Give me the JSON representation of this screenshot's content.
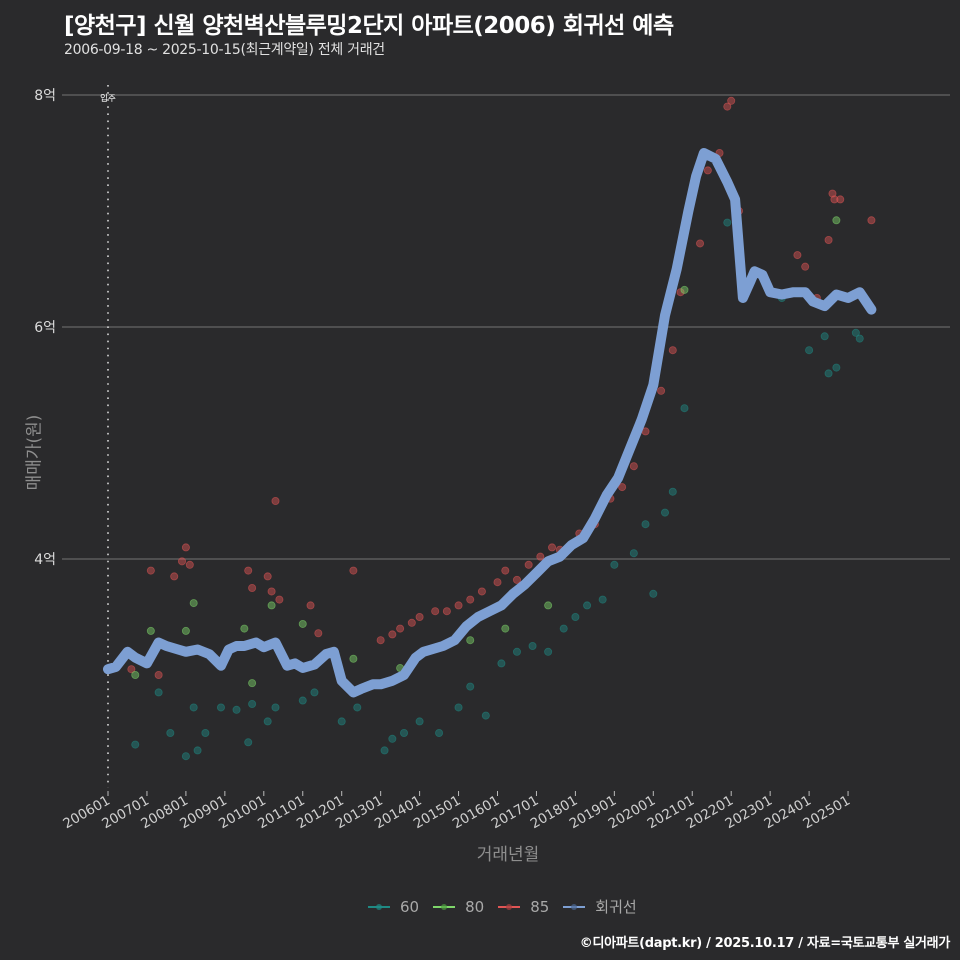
{
  "header": {
    "title": "[양천구] 신월 양천벽산블루밍2단지 아파트(2006) 회귀선 예측",
    "subtitle": "2006-09-18 ~ 2025-10-15(최근계약일) 전체 거래건"
  },
  "axes": {
    "ylabel": "매매가(원)",
    "xlabel": "거래년월",
    "move_in_label": "입주"
  },
  "legend": {
    "items": [
      {
        "label": "60",
        "color": "#1f8a84"
      },
      {
        "label": "80",
        "color": "#7ed66a"
      },
      {
        "label": "85",
        "color": "#e05555"
      },
      {
        "label": "회귀선",
        "color": "#7d9fd3"
      }
    ]
  },
  "caption": "©디아파트(dapt.kr) / 2025.10.17 / 자료=국토교통부 실거래가",
  "chart_data": {
    "type": "scatter",
    "title": "[양천구] 신월 양천벽산블루밍2단지 아파트(2006) 회귀선 예측",
    "subtitle": "2006-09-18 ~ 2025-10-15(최근계약일) 전체 거래건",
    "xlabel": "거래년월",
    "ylabel": "매매가(원)",
    "x_ticks": [
      "200601",
      "200701",
      "200801",
      "200901",
      "201001",
      "201101",
      "201201",
      "201301",
      "201401",
      "201501",
      "201601",
      "201701",
      "201801",
      "201901",
      "202001",
      "202101",
      "202201",
      "202301",
      "202401",
      "202501"
    ],
    "y_ticks": [
      "4억",
      "6억",
      "8억"
    ],
    "ylim_eok": [
      2.0,
      8.1
    ],
    "xlim_year": [
      2005.5,
      2026.0
    ],
    "grid": "horizontal major only",
    "legend_position": "bottom",
    "annotation": {
      "x": 2006.0,
      "label": "입주",
      "style": "vertical dotted line"
    },
    "series": [
      {
        "name": "회귀선",
        "kind": "line",
        "color": "#7d9fd3",
        "x": [
          2006.0,
          2006.2,
          2006.5,
          2006.7,
          2007.0,
          2007.3,
          2007.5,
          2007.8,
          2008.0,
          2008.3,
          2008.6,
          2008.9,
          2009.1,
          2009.3,
          2009.5,
          2009.8,
          2010.0,
          2010.3,
          2010.6,
          2010.8,
          2011.0,
          2011.3,
          2011.6,
          2011.8,
          2012.0,
          2012.3,
          2012.5,
          2012.8,
          2013.0,
          2013.3,
          2013.6,
          2013.9,
          2014.1,
          2014.3,
          2014.6,
          2014.9,
          2015.2,
          2015.5,
          2015.8,
          2016.1,
          2016.4,
          2016.7,
          2017.0,
          2017.3,
          2017.6,
          2017.9,
          2018.2,
          2018.5,
          2018.8,
          2019.1,
          2019.4,
          2019.7,
          2020.0,
          2020.3,
          2020.6,
          2020.9,
          2021.1,
          2021.3,
          2021.6,
          2021.9,
          2022.1,
          2022.3,
          2022.5,
          2022.6,
          2022.8,
          2023.0,
          2023.3,
          2023.6,
          2023.9,
          2024.1,
          2024.4,
          2024.7,
          2025.0,
          2025.3,
          2025.6
        ],
        "values_eok": [
          3.05,
          3.07,
          3.2,
          3.15,
          3.1,
          3.28,
          3.25,
          3.22,
          3.2,
          3.22,
          3.18,
          3.08,
          3.22,
          3.25,
          3.25,
          3.28,
          3.24,
          3.28,
          3.08,
          3.1,
          3.06,
          3.09,
          3.18,
          3.2,
          2.95,
          2.85,
          2.88,
          2.92,
          2.92,
          2.95,
          3.0,
          3.15,
          3.2,
          3.22,
          3.25,
          3.3,
          3.42,
          3.5,
          3.55,
          3.6,
          3.7,
          3.78,
          3.88,
          3.98,
          4.02,
          4.12,
          4.18,
          4.35,
          4.55,
          4.7,
          4.95,
          5.2,
          5.5,
          6.1,
          6.5,
          7.0,
          7.3,
          7.5,
          7.45,
          7.25,
          7.1,
          6.25,
          6.4,
          6.48,
          6.45,
          6.3,
          6.28,
          6.3,
          6.3,
          6.22,
          6.18,
          6.28,
          6.25,
          6.3,
          6.15
        ]
      },
      {
        "name": "85",
        "kind": "scatter",
        "color": "#e05555",
        "points": [
          [
            2006.6,
            3.05
          ],
          [
            2006.7,
            3.15
          ],
          [
            2007.1,
            3.9
          ],
          [
            2007.3,
            3.0
          ],
          [
            2007.7,
            3.85
          ],
          [
            2007.9,
            3.98
          ],
          [
            2008.0,
            4.1
          ],
          [
            2008.1,
            3.95
          ],
          [
            2009.6,
            3.9
          ],
          [
            2009.7,
            3.75
          ],
          [
            2010.1,
            3.85
          ],
          [
            2010.2,
            3.72
          ],
          [
            2010.3,
            4.5
          ],
          [
            2010.4,
            3.65
          ],
          [
            2011.2,
            3.6
          ],
          [
            2011.4,
            3.36
          ],
          [
            2012.3,
            3.9
          ],
          [
            2013.0,
            3.3
          ],
          [
            2013.3,
            3.35
          ],
          [
            2013.5,
            3.4
          ],
          [
            2013.8,
            3.45
          ],
          [
            2014.0,
            3.5
          ],
          [
            2014.4,
            3.55
          ],
          [
            2014.7,
            3.55
          ],
          [
            2015.0,
            3.6
          ],
          [
            2015.3,
            3.65
          ],
          [
            2015.6,
            3.72
          ],
          [
            2016.0,
            3.8
          ],
          [
            2016.2,
            3.9
          ],
          [
            2016.5,
            3.82
          ],
          [
            2016.8,
            3.95
          ],
          [
            2017.1,
            4.02
          ],
          [
            2017.4,
            4.1
          ],
          [
            2017.6,
            4.08
          ],
          [
            2017.9,
            4.12
          ],
          [
            2018.1,
            4.22
          ],
          [
            2018.5,
            4.3
          ],
          [
            2018.9,
            4.52
          ],
          [
            2019.2,
            4.62
          ],
          [
            2019.5,
            4.8
          ],
          [
            2019.8,
            5.1
          ],
          [
            2020.2,
            5.45
          ],
          [
            2020.5,
            5.8
          ],
          [
            2020.7,
            6.3
          ],
          [
            2021.2,
            6.72
          ],
          [
            2021.4,
            7.35
          ],
          [
            2021.7,
            7.5
          ],
          [
            2021.9,
            7.9
          ],
          [
            2022.0,
            7.95
          ],
          [
            2022.2,
            7.0
          ],
          [
            2023.7,
            6.62
          ],
          [
            2023.9,
            6.52
          ],
          [
            2024.2,
            6.25
          ],
          [
            2024.6,
            7.15
          ],
          [
            2024.65,
            7.1
          ],
          [
            2024.8,
            7.1
          ],
          [
            2024.5,
            6.75
          ],
          [
            2025.6,
            6.92
          ]
        ]
      },
      {
        "name": "80",
        "kind": "scatter",
        "color": "#7ed66a",
        "points": [
          [
            2006.7,
            3.0
          ],
          [
            2007.1,
            3.38
          ],
          [
            2008.0,
            3.38
          ],
          [
            2008.2,
            3.62
          ],
          [
            2009.5,
            3.4
          ],
          [
            2009.7,
            2.93
          ],
          [
            2010.2,
            3.6
          ],
          [
            2011.0,
            3.44
          ],
          [
            2012.3,
            3.14
          ],
          [
            2013.5,
            3.06
          ],
          [
            2015.3,
            3.3
          ],
          [
            2016.2,
            3.4
          ],
          [
            2017.3,
            3.6
          ],
          [
            2020.8,
            6.32
          ],
          [
            2024.7,
            6.92
          ]
        ]
      },
      {
        "name": "60",
        "kind": "scatter",
        "color": "#1f8a84",
        "points": [
          [
            2006.7,
            2.4
          ],
          [
            2007.3,
            2.85
          ],
          [
            2007.6,
            2.5
          ],
          [
            2008.0,
            2.3
          ],
          [
            2008.2,
            2.72
          ],
          [
            2008.3,
            2.35
          ],
          [
            2008.5,
            2.5
          ],
          [
            2008.9,
            2.72
          ],
          [
            2009.3,
            2.7
          ],
          [
            2009.6,
            2.42
          ],
          [
            2009.7,
            2.75
          ],
          [
            2010.1,
            2.6
          ],
          [
            2010.3,
            2.72
          ],
          [
            2011.0,
            2.78
          ],
          [
            2011.3,
            2.85
          ],
          [
            2012.0,
            2.6
          ],
          [
            2012.4,
            2.72
          ],
          [
            2013.1,
            2.35
          ],
          [
            2013.3,
            2.45
          ],
          [
            2013.6,
            2.5
          ],
          [
            2014.0,
            2.6
          ],
          [
            2014.5,
            2.5
          ],
          [
            2015.0,
            2.72
          ],
          [
            2015.3,
            2.9
          ],
          [
            2015.7,
            2.65
          ],
          [
            2016.1,
            3.1
          ],
          [
            2016.5,
            3.2
          ],
          [
            2016.9,
            3.25
          ],
          [
            2017.3,
            3.2
          ],
          [
            2017.7,
            3.4
          ],
          [
            2018.0,
            3.5
          ],
          [
            2018.3,
            3.6
          ],
          [
            2018.7,
            3.65
          ],
          [
            2019.0,
            3.95
          ],
          [
            2019.5,
            4.05
          ],
          [
            2019.8,
            4.3
          ],
          [
            2020.0,
            3.7
          ],
          [
            2020.3,
            4.4
          ],
          [
            2020.5,
            4.58
          ],
          [
            2020.8,
            5.3
          ],
          [
            2021.9,
            6.9
          ],
          [
            2023.3,
            6.25
          ],
          [
            2024.0,
            5.8
          ],
          [
            2024.4,
            5.92
          ],
          [
            2024.5,
            5.6
          ],
          [
            2024.7,
            5.65
          ],
          [
            2025.2,
            5.95
          ],
          [
            2025.3,
            5.9
          ]
        ]
      }
    ]
  }
}
